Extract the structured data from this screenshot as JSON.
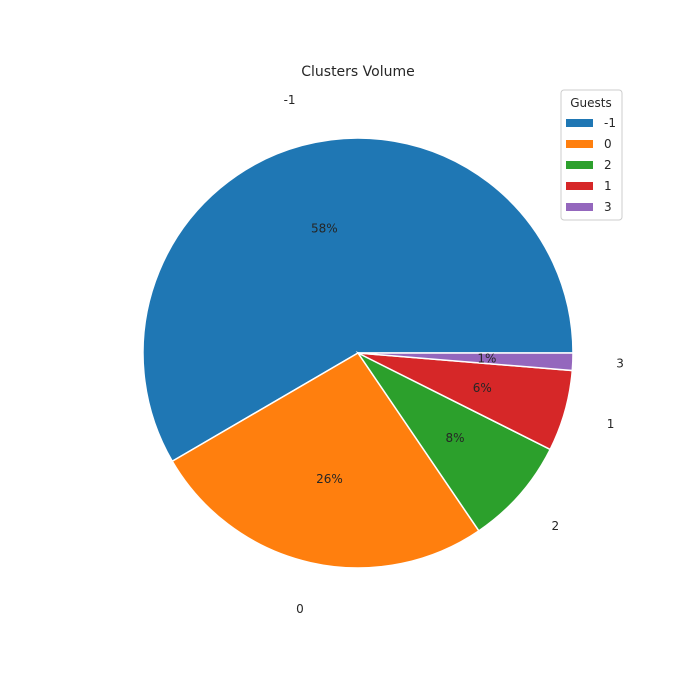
{
  "chart_data": {
    "type": "pie",
    "title": "Clusters Volume",
    "categories": [
      "-1",
      "0",
      "2",
      "1",
      "3"
    ],
    "values": [
      58.4,
      26.1,
      8.1,
      6.1,
      1.3
    ],
    "percent_labels": [
      "58%",
      "26%",
      "8%",
      "6%",
      "1%"
    ],
    "colors": [
      "#1f77b4",
      "#ff7f0e",
      "#2ca02c",
      "#d62728",
      "#9467bd"
    ],
    "start_angle_deg": 0,
    "direction": "counterclockwise",
    "legend": {
      "title": "Guests",
      "placement": "top-right",
      "entries": [
        "-1",
        "0",
        "2",
        "1",
        "3"
      ]
    }
  }
}
